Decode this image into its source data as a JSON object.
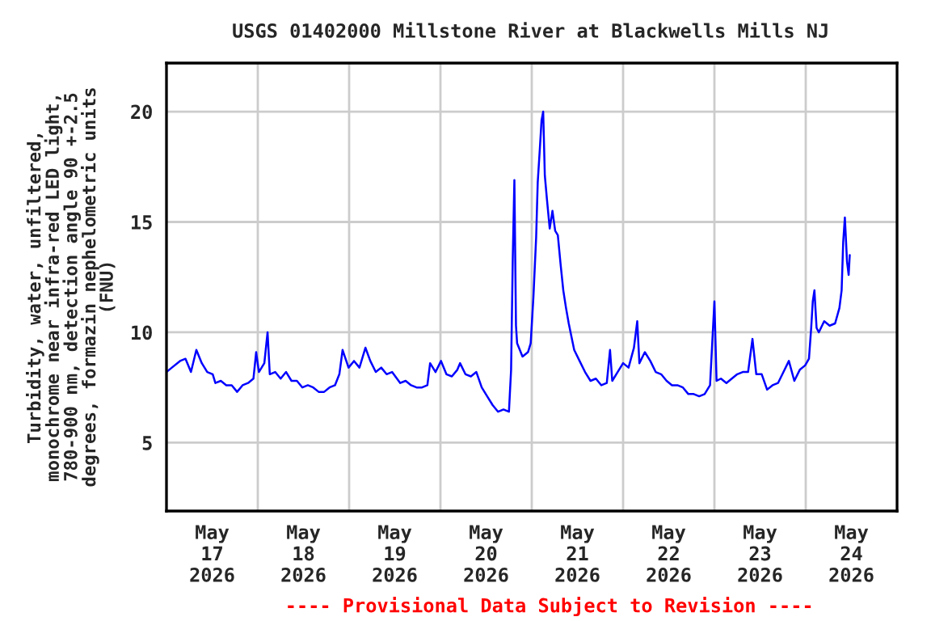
{
  "chart_data": {
    "type": "line",
    "title": "USGS 01402000 Millstone River at Blackwells Mills NJ",
    "ylabel": "Turbidity, water, unfiltered,\nmonochrome near infra-red LED light,\n780-900 nm, detection angle 90 +-2.5\ndegrees, formazin nephelometric units\n(FNU)",
    "annotations": [
      "---- Provisional Data Subject to Revision ----"
    ],
    "xlim": [
      "2026-05-17",
      "2026-05-25"
    ],
    "xticks": [
      {
        "value": "2026-05-17T12:00",
        "label": "May\n17\n2026"
      },
      {
        "value": "2026-05-18T12:00",
        "label": "May\n18\n2026"
      },
      {
        "value": "2026-05-19T12:00",
        "label": "May\n19\n2026"
      },
      {
        "value": "2026-05-20T12:00",
        "label": "May\n20\n2026"
      },
      {
        "value": "2026-05-21T12:00",
        "label": "May\n21\n2026"
      },
      {
        "value": "2026-05-22T12:00",
        "label": "May\n22\n2026"
      },
      {
        "value": "2026-05-23T12:00",
        "label": "May\n23\n2026"
      },
      {
        "value": "2026-05-24T12:00",
        "label": "May\n24\n2026"
      },
      {
        "value": "2026-05-18",
        "label": null
      },
      {
        "value": "2026-05-19",
        "label": null
      },
      {
        "value": "2026-05-20",
        "label": null
      },
      {
        "value": "2026-05-21",
        "label": null
      },
      {
        "value": "2026-05-22",
        "label": null
      },
      {
        "value": "2026-05-23",
        "label": null
      },
      {
        "value": "2026-05-24",
        "label": null
      }
    ],
    "ylim": [
      1.9,
      22.2
    ],
    "yticks": [
      5,
      10,
      15,
      20
    ],
    "grid": true,
    "legend": false,
    "series": [
      {
        "color": "#0000ff",
        "x": [
          "2026-05-17T00:00",
          "2026-05-17T01:25",
          "2026-05-17T03:34",
          "2026-05-17T05:00",
          "2026-05-17T06:26",
          "2026-05-17T07:51",
          "2026-05-17T09:17",
          "2026-05-17T10:43",
          "2026-05-17T12:09",
          "2026-05-17T12:51",
          "2026-05-17T14:17",
          "2026-05-17T15:43",
          "2026-05-17T17:09",
          "2026-05-17T18:34",
          "2026-05-17T20:00",
          "2026-05-17T21:26",
          "2026-05-17T22:51",
          "2026-05-17T23:34",
          "2026-05-18T00:17",
          "2026-05-18T01:43",
          "2026-05-18T02:34",
          "2026-05-18T03:09",
          "2026-05-18T04:34",
          "2026-05-18T06:00",
          "2026-05-18T07:26",
          "2026-05-18T08:51",
          "2026-05-18T10:17",
          "2026-05-18T11:43",
          "2026-05-18T13:09",
          "2026-05-18T14:34",
          "2026-05-18T16:00",
          "2026-05-18T17:26",
          "2026-05-18T18:51",
          "2026-05-18T20:17",
          "2026-05-18T21:26",
          "2026-05-18T22:17",
          "2026-05-18T23:51",
          "2026-05-19T01:17",
          "2026-05-19T02:43",
          "2026-05-19T04:17",
          "2026-05-19T05:34",
          "2026-05-19T07:00",
          "2026-05-19T08:26",
          "2026-05-19T09:51",
          "2026-05-19T11:17",
          "2026-05-19T13:26",
          "2026-05-19T14:51",
          "2026-05-19T16:17",
          "2026-05-19T17:43",
          "2026-05-19T19:09",
          "2026-05-19T20:34",
          "2026-05-19T21:17",
          "2026-05-19T22:43",
          "2026-05-20T00:09",
          "2026-05-20T01:34",
          "2026-05-20T03:00",
          "2026-05-20T04:26",
          "2026-05-20T05:09",
          "2026-05-20T06:34",
          "2026-05-20T08:00",
          "2026-05-20T09:26",
          "2026-05-20T10:51",
          "2026-05-20T12:17",
          "2026-05-20T13:43",
          "2026-05-20T15:09",
          "2026-05-20T16:34",
          "2026-05-20T18:00",
          "2026-05-20T18:34",
          "2026-05-20T19:00",
          "2026-05-20T19:26",
          "2026-05-20T19:51",
          "2026-05-20T20:09",
          "2026-05-20T21:34",
          "2026-05-20T23:00",
          "2026-05-20T23:43",
          "2026-05-21T00:26",
          "2026-05-21T01:09",
          "2026-05-21T01:34",
          "2026-05-21T02:09",
          "2026-05-21T02:34",
          "2026-05-21T03:00",
          "2026-05-21T03:26",
          "2026-05-21T04:00",
          "2026-05-21T04:43",
          "2026-05-21T05:26",
          "2026-05-21T06:09",
          "2026-05-21T06:51",
          "2026-05-21T07:34",
          "2026-05-21T08:17",
          "2026-05-21T09:00",
          "2026-05-21T09:43",
          "2026-05-21T10:26",
          "2026-05-21T11:09",
          "2026-05-21T12:34",
          "2026-05-21T14:00",
          "2026-05-21T15:26",
          "2026-05-21T16:51",
          "2026-05-21T18:17",
          "2026-05-21T19:43",
          "2026-05-21T20:34",
          "2026-05-21T21:09",
          "2026-05-21T22:34",
          "2026-05-22T00:00",
          "2026-05-22T01:26",
          "2026-05-22T02:51",
          "2026-05-22T03:43",
          "2026-05-22T04:17",
          "2026-05-22T05:43",
          "2026-05-22T07:09",
          "2026-05-22T08:34",
          "2026-05-22T10:00",
          "2026-05-22T11:26",
          "2026-05-22T12:51",
          "2026-05-22T14:17",
          "2026-05-22T15:43",
          "2026-05-22T17:09",
          "2026-05-22T18:34",
          "2026-05-22T20:00",
          "2026-05-22T21:26",
          "2026-05-22T22:51",
          "2026-05-23T00:00",
          "2026-05-23T00:34",
          "2026-05-23T01:43",
          "2026-05-23T03:09",
          "2026-05-23T04:34",
          "2026-05-23T06:00",
          "2026-05-23T07:26",
          "2026-05-23T08:51",
          "2026-05-23T10:00",
          "2026-05-23T11:00",
          "2026-05-23T12:26",
          "2026-05-23T13:51",
          "2026-05-23T15:17",
          "2026-05-23T16:43",
          "2026-05-23T18:09",
          "2026-05-23T19:34",
          "2026-05-23T21:00",
          "2026-05-23T22:26",
          "2026-05-23T23:51",
          "2026-05-24T00:51",
          "2026-05-24T01:26",
          "2026-05-24T01:51",
          "2026-05-24T02:17",
          "2026-05-24T02:51",
          "2026-05-24T03:26",
          "2026-05-24T04:51",
          "2026-05-24T06:17",
          "2026-05-24T07:43",
          "2026-05-24T08:51",
          "2026-05-24T09:26",
          "2026-05-24T09:51",
          "2026-05-24T10:17",
          "2026-05-24T10:51",
          "2026-05-24T11:17",
          "2026-05-24T11:34"
        ],
        "values": [
          8.2,
          8.4,
          8.7,
          8.8,
          8.2,
          9.2,
          8.6,
          8.2,
          8.1,
          7.7,
          7.8,
          7.6,
          7.6,
          7.3,
          7.6,
          7.7,
          7.9,
          9.1,
          8.2,
          8.6,
          10.0,
          8.1,
          8.2,
          7.9,
          8.2,
          7.8,
          7.8,
          7.5,
          7.6,
          7.5,
          7.3,
          7.3,
          7.5,
          7.6,
          8.1,
          9.2,
          8.4,
          8.7,
          8.4,
          9.3,
          8.7,
          8.2,
          8.4,
          8.1,
          8.2,
          7.7,
          7.8,
          7.6,
          7.5,
          7.5,
          7.6,
          8.6,
          8.2,
          8.7,
          8.1,
          8.0,
          8.3,
          8.6,
          8.1,
          8.0,
          8.2,
          7.5,
          7.1,
          6.7,
          6.4,
          6.5,
          6.4,
          8.3,
          13.3,
          16.9,
          10.3,
          9.5,
          8.9,
          9.1,
          9.5,
          11.6,
          14.3,
          16.8,
          18.4,
          19.6,
          20.0,
          17.1,
          16.0,
          14.7,
          15.5,
          14.6,
          14.4,
          13.1,
          11.9,
          11.1,
          10.4,
          9.8,
          9.2,
          8.7,
          8.2,
          7.8,
          7.9,
          7.6,
          7.7,
          9.2,
          7.8,
          8.2,
          8.6,
          8.4,
          9.3,
          10.5,
          8.6,
          9.1,
          8.7,
          8.2,
          8.1,
          7.8,
          7.6,
          7.6,
          7.5,
          7.2,
          7.2,
          7.1,
          7.2,
          7.6,
          11.4,
          7.8,
          7.9,
          7.7,
          7.9,
          8.1,
          8.2,
          8.2,
          9.7,
          8.1,
          8.1,
          7.4,
          7.6,
          7.7,
          8.2,
          8.7,
          7.8,
          8.3,
          8.5,
          8.8,
          10.2,
          11.4,
          11.9,
          10.2,
          10.0,
          10.5,
          10.3,
          10.4,
          11.1,
          11.9,
          14.1,
          15.2,
          13.2,
          12.6,
          13.5
        ]
      }
    ]
  }
}
